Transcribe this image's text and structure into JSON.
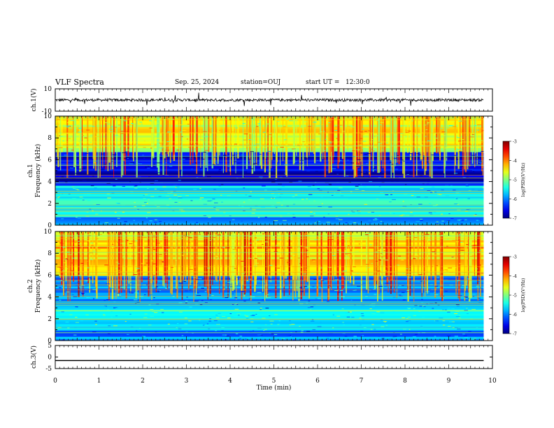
{
  "header": {
    "title": "VLF Spectra",
    "date": "Sep. 25, 2024",
    "station": "station=OUJ",
    "start_ut": "start UT =   12:30:0"
  },
  "chart_data": [
    {
      "type": "line",
      "title": "",
      "ylabel": "ch.1(V)",
      "ylim": [
        -10,
        10
      ],
      "y_ticks": [
        "10",
        "-10"
      ],
      "x_range_min": [
        0,
        10
      ],
      "series": [
        {
          "values_description_mean": 0,
          "noise_amplitude_volts": 1.2
        }
      ]
    },
    {
      "type": "heatmap",
      "ylabel": "ch.1  Frequency (kHz)",
      "xlim": [
        0,
        10
      ],
      "ylim": [
        0,
        10
      ],
      "y_ticks": [
        "0",
        "2",
        "4",
        "6",
        "8",
        "10"
      ],
      "data_extent_x_max": 9.8,
      "colorbar": {
        "label": "log(PSD)(V²/Hz)",
        "ticks": [
          "-3",
          "-4",
          "-5",
          "-6",
          "-7"
        ],
        "range": [
          -7,
          -3
        ]
      },
      "bands_khz": [
        {
          "from": 0,
          "to": 0.8,
          "level": -5.8
        },
        {
          "from": 0.8,
          "to": 2.8,
          "level": -5.3
        },
        {
          "from": 2.8,
          "to": 3.6,
          "level": -5.6
        },
        {
          "from": 3.6,
          "to": 6.8,
          "level": -6.7
        },
        {
          "from": 6.8,
          "to": 10,
          "level": -4.6
        }
      ]
    },
    {
      "type": "heatmap",
      "ylabel": "ch.2  Frequency (kHz)",
      "xlim": [
        0,
        10
      ],
      "ylim": [
        0,
        10
      ],
      "y_ticks": [
        "0",
        "2",
        "4",
        "6",
        "8",
        "10"
      ],
      "data_extent_x_max": 9.8,
      "colorbar": {
        "label": "log(PSD)(V²/Hz)",
        "ticks": [
          "-3",
          "-4",
          "-5",
          "-6",
          "-7"
        ],
        "range": [
          -7,
          -3
        ]
      },
      "bands_khz": [
        {
          "from": 0,
          "to": 1.0,
          "level": -6.0
        },
        {
          "from": 1.0,
          "to": 3.0,
          "level": -5.4
        },
        {
          "from": 3.0,
          "to": 6.0,
          "level": -6.0
        },
        {
          "from": 6.0,
          "to": 10,
          "level": -4.3
        }
      ]
    },
    {
      "type": "line",
      "ylabel": "ch.3(V)",
      "ylim": [
        -5,
        5
      ],
      "y_ticks": [
        "5",
        "0",
        "-5"
      ],
      "series": [
        {
          "constant_value_volts": -1.5
        }
      ]
    }
  ],
  "xaxis": {
    "label": "Time (min)",
    "ticks": [
      "0",
      "1",
      "2",
      "3",
      "4",
      "5",
      "6",
      "7",
      "8",
      "9",
      "10"
    ],
    "range": [
      0,
      10
    ]
  }
}
